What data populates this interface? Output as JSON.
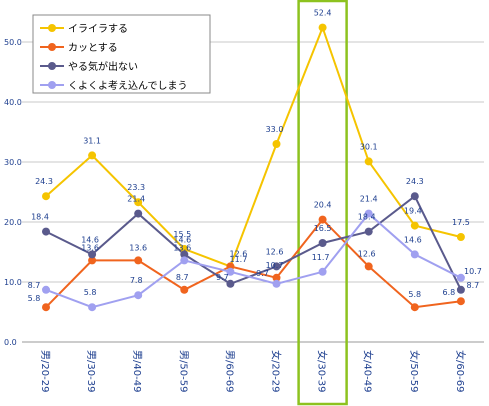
{
  "chart_data": {
    "type": "line",
    "categories": [
      "男/20-29",
      "男/30-39",
      "男/40-49",
      "男/50-59",
      "男/60-69",
      "女/20-29",
      "女/30-39",
      "女/40-49",
      "女/50-59",
      "女/60-69"
    ],
    "ylim": [
      0,
      55
    ],
    "yticks": [
      "0.0",
      "10.0",
      "20.0",
      "30.0",
      "40.0",
      "50.0"
    ],
    "ytick_values": [
      0,
      10,
      20,
      30,
      40,
      50
    ],
    "grid": true,
    "legend_position": "top-left",
    "highlight_category_index": 6,
    "highlight_color": "#8dc21f",
    "series": [
      {
        "name": "イライラする",
        "color": "#f5c400",
        "values": [
          24.3,
          31.1,
          23.3,
          15.5,
          12.6,
          33.0,
          52.4,
          30.1,
          19.4,
          17.5
        ],
        "labels": [
          "24.3",
          "31.1",
          "23.3",
          "15.5",
          "12.6",
          "33.0",
          "52.4",
          "30.1",
          "19.4",
          "17.5"
        ]
      },
      {
        "name": "カッとする",
        "color": "#f0641e",
        "values": [
          5.8,
          13.6,
          13.6,
          8.7,
          12.6,
          10.7,
          20.4,
          12.6,
          5.8,
          6.8
        ],
        "labels": [
          "5.8",
          "13.6",
          "13.6",
          "8.7",
          "",
          "10.7",
          "20.4",
          "12.6",
          "5.8",
          "6.8"
        ]
      },
      {
        "name": "やる気が出ない",
        "color": "#5a5a8c",
        "values": [
          18.4,
          14.6,
          21.4,
          14.6,
          9.7,
          12.6,
          16.5,
          18.4,
          24.3,
          8.7
        ],
        "labels": [
          "18.4",
          "14.6",
          "21.4",
          "14.6",
          "9.7",
          "12.6",
          "16.5",
          "18.4",
          "24.3",
          "8.7"
        ]
      },
      {
        "name": "くよくよ考え込んでしまう",
        "color": "#a0a0f0",
        "values": [
          8.7,
          5.8,
          7.8,
          13.6,
          11.7,
          9.7,
          11.7,
          21.4,
          14.6,
          10.7
        ],
        "labels": [
          "8.7",
          "5.8",
          "7.8",
          "13.6",
          "11.7",
          "9.7",
          "11.7",
          "21.4",
          "14.6",
          "10.7"
        ]
      }
    ]
  }
}
